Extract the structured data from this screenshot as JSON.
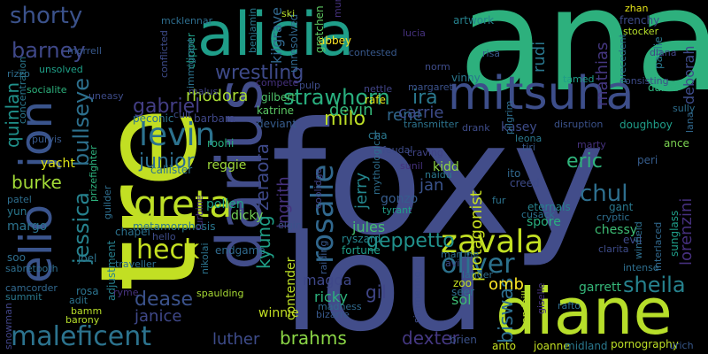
{
  "words": [
    {
      "text": "foxy",
      "color": "#424d8a"
    },
    {
      "text": "ana",
      "color": "#2db07d"
    },
    {
      "text": "tre",
      "color": "#c2df23"
    },
    {
      "text": "lou",
      "color": "#424d8a"
    },
    {
      "text": "diane",
      "color": "#b7de2a"
    },
    {
      "text": "darius",
      "color": "#424d8a"
    },
    {
      "text": "elio",
      "color": "#3a548c"
    },
    {
      "text": "jon",
      "color": "#3a548c"
    },
    {
      "text": "alicia",
      "color": "#1f9e89"
    },
    {
      "text": "mitsuha",
      "color": "#3d4e8a"
    },
    {
      "text": "zavala",
      "color": "#c2df23"
    },
    {
      "text": "rosalie",
      "color": "#31688e"
    },
    {
      "text": "greta",
      "color": "#bddf26"
    },
    {
      "text": "maleficent",
      "color": "#2c738e"
    },
    {
      "text": "heck",
      "color": "#c5e021"
    },
    {
      "text": "levin",
      "color": "#2c728e"
    },
    {
      "text": "oliver",
      "color": "#2c728e"
    },
    {
      "text": "sheila",
      "color": "#26828e"
    },
    {
      "text": "shorty",
      "color": "#3b528b"
    },
    {
      "text": "barney",
      "color": "#3f4889"
    },
    {
      "text": "strawhorn",
      "color": "#29af7f"
    },
    {
      "text": "wrestling",
      "color": "#3e4a89"
    },
    {
      "text": "gabriel",
      "color": "#433e85"
    },
    {
      "text": "bullseye",
      "color": "#2d708e"
    },
    {
      "text": "quinlan",
      "color": "#20928c"
    },
    {
      "text": "junior",
      "color": "#2e6e8e"
    },
    {
      "text": "eric",
      "color": "#2fb47c"
    },
    {
      "text": "jessica",
      "color": "#26828e"
    },
    {
      "text": "geppetto",
      "color": "#21918c"
    },
    {
      "text": "kyung",
      "color": "#1fa088"
    },
    {
      "text": "zeraora",
      "color": "#3e4989"
    },
    {
      "text": "ingrith",
      "color": "#46327e"
    },
    {
      "text": "jerry",
      "color": "#24878e"
    },
    {
      "text": "protagonist",
      "color": "#c8e020"
    },
    {
      "text": "chul",
      "color": "#2e6f8e"
    },
    {
      "text": "lorenzini",
      "color": "#46307e"
    },
    {
      "text": "deborah",
      "color": "#3e4c8a"
    },
    {
      "text": "mathias",
      "color": "#453781"
    },
    {
      "text": "rudi",
      "color": "#2a778e"
    },
    {
      "text": "brahms",
      "color": "#8bd646"
    },
    {
      "text": "dexter",
      "color": "#453882"
    },
    {
      "text": "gil",
      "color": "#404688"
    },
    {
      "text": "biswas",
      "color": "#2e6e8e"
    },
    {
      "text": "burke",
      "color": "#a2da37"
    },
    {
      "text": "milo",
      "color": "#bddf26"
    },
    {
      "text": "ira",
      "color": "#2a788e"
    },
    {
      "text": "rene",
      "color": "#31688e"
    },
    {
      "text": "dease",
      "color": "#3b528b"
    },
    {
      "text": "janice",
      "color": "#3f4889"
    },
    {
      "text": "carrie",
      "color": "#3e4c8a"
    },
    {
      "text": "devin",
      "color": "#35b779"
    },
    {
      "text": "rhodora",
      "color": "#a8db34"
    },
    {
      "text": "kilgrave",
      "color": "#31688e"
    },
    {
      "text": "jan",
      "color": "#3a538b"
    },
    {
      "text": "jules",
      "color": "#44bf70"
    },
    {
      "text": "omb",
      "color": "#fde725"
    },
    {
      "text": "luther",
      "color": "#3e4c8a"
    },
    {
      "text": "contender",
      "color": "#bddf26"
    },
    {
      "text": "magda",
      "color": "#3f4889"
    },
    {
      "text": "ricky",
      "color": "#2db27d"
    },
    {
      "text": "sol",
      "color": "#3dbc74"
    },
    {
      "text": "margo",
      "color": "#2c738e"
    },
    {
      "text": "yacht",
      "color": "#dde318"
    },
    {
      "text": "kasey",
      "color": "#3e4c8a"
    },
    {
      "text": "spore",
      "color": "#29af7f"
    },
    {
      "text": "garrett",
      "color": "#35b779"
    },
    {
      "text": "winnie",
      "color": "#c2df23"
    },
    {
      "text": "gonzo",
      "color": "#365c8d"
    },
    {
      "text": "kidd",
      "color": "#8fd744"
    },
    {
      "text": "pollen",
      "color": "#20a386"
    },
    {
      "text": "dicky",
      "color": "#73d056"
    },
    {
      "text": "reggie",
      "color": "#9dd93b"
    },
    {
      "text": "callister",
      "color": "#2c738e"
    },
    {
      "text": "metamorphosis",
      "color": "#2a768e"
    },
    {
      "text": "chapel",
      "color": "#2c728e"
    },
    {
      "text": "endgame",
      "color": "#306a8e"
    },
    {
      "text": "adjustment",
      "color": "#27808e"
    },
    {
      "text": "chessy",
      "color": "#3dbc74"
    },
    {
      "text": "ryszard",
      "color": "#24868e"
    },
    {
      "text": "fortune",
      "color": "#1f9e89"
    },
    {
      "text": "vinny",
      "color": "#2a788e"
    },
    {
      "text": "rafe",
      "color": "#e2e418"
    },
    {
      "text": "katrine",
      "color": "#5ac864"
    },
    {
      "text": "deviant",
      "color": "#365c8d"
    },
    {
      "text": "gilbert",
      "color": "#4ec36b"
    },
    {
      "text": "cha",
      "color": "#2a788e"
    },
    {
      "text": "barbara",
      "color": "#3f4788"
    },
    {
      "text": "roohi",
      "color": "#29af7f"
    },
    {
      "text": "peconic",
      "color": "#2c738e"
    },
    {
      "text": "artwork",
      "color": "#26828e"
    },
    {
      "text": "frenchy",
      "color": "#3e4c8a"
    },
    {
      "text": "paulie",
      "color": "#2a788e"
    },
    {
      "text": "dared",
      "color": "#2db27d"
    },
    {
      "text": "peri",
      "color": "#365d8d"
    },
    {
      "text": "ance",
      "color": "#7ad151"
    },
    {
      "text": "doughboy",
      "color": "#1f9e89"
    },
    {
      "text": "creed",
      "color": "#3e4c8a"
    },
    {
      "text": "ito",
      "color": "#31688e"
    },
    {
      "text": "eternals",
      "color": "#26828e"
    },
    {
      "text": "abbey",
      "color": "#fde725"
    },
    {
      "text": "clipper",
      "color": "#1fa088"
    },
    {
      "text": "gretchen",
      "color": "#5ec962"
    },
    {
      "text": "unresolved",
      "color": "#31688e"
    },
    {
      "text": "sunglass",
      "color": "#1f9e89"
    },
    {
      "text": "evil",
      "color": "#3e4989"
    },
    {
      "text": "gant",
      "color": "#2a788e"
    },
    {
      "text": "seer",
      "color": "#2e6e8e"
    },
    {
      "text": "anto",
      "color": "#c5e021"
    },
    {
      "text": "joanne",
      "color": "#c2df23"
    },
    {
      "text": "midland",
      "color": "#2a788e"
    },
    {
      "text": "pornography",
      "color": "#bddf26"
    },
    {
      "text": "brien",
      "color": "#3b528b"
    },
    {
      "text": "zoo",
      "color": "#c5e021"
    },
    {
      "text": "bizarre",
      "color": "#38598c"
    },
    {
      "text": "madness",
      "color": "#306a8e"
    },
    {
      "text": "spaulding",
      "color": "#a8db34"
    },
    {
      "text": "bamm",
      "color": "#b8de29"
    },
    {
      "text": "rosa",
      "color": "#2c738e"
    },
    {
      "text": "joel",
      "color": "#2c738e"
    },
    {
      "text": "soo",
      "color": "#2e6e8e"
    },
    {
      "text": "yun",
      "color": "#2a788e"
    },
    {
      "text": "patel",
      "color": "#2e6e8e"
    },
    {
      "text": "snowman",
      "color": "#414487"
    },
    {
      "text": "handbill",
      "color": "#b5de2b"
    },
    {
      "text": "simmering",
      "color": "#3e4c8a"
    },
    {
      "text": "giselle",
      "color": "#46327e"
    },
    {
      "text": "mcklennar",
      "color": "#2e6e8e"
    },
    {
      "text": "benjamin",
      "color": "#2a788e"
    },
    {
      "text": "rizzo",
      "color": "#2e6e8e"
    },
    {
      "text": "unsolved",
      "color": "#1fa088"
    },
    {
      "text": "socialite",
      "color": "#2db27d"
    },
    {
      "text": "purvis",
      "color": "#38598c"
    },
    {
      "text": "uneasy",
      "color": "#3e4c8a"
    },
    {
      "text": "malus",
      "color": "#414487"
    },
    {
      "text": "compete",
      "color": "#46327e"
    },
    {
      "text": "pulp",
      "color": "#3e4c8a"
    },
    {
      "text": "nettle",
      "color": "#414487"
    },
    {
      "text": "margaret",
      "color": "#3b528b"
    },
    {
      "text": "transmitter",
      "color": "#2c738e"
    },
    {
      "text": "drank",
      "color": "#3e4c8a"
    },
    {
      "text": "pilgrim",
      "color": "#2e6e8e"
    },
    {
      "text": "leona",
      "color": "#2a788e"
    },
    {
      "text": "tiri",
      "color": "#38598c"
    },
    {
      "text": "marty",
      "color": "#46327e"
    },
    {
      "text": "lana",
      "color": "#31688e"
    },
    {
      "text": "sully",
      "color": "#2e6e8e"
    },
    {
      "text": "consisting",
      "color": "#3e4c8a"
    },
    {
      "text": "tamed",
      "color": "#1f9e89"
    },
    {
      "text": "diana",
      "color": "#414487"
    },
    {
      "text": "stocker",
      "color": "#b5de2b"
    },
    {
      "text": "zhan",
      "color": "#e5e419"
    },
    {
      "text": "precedent",
      "color": "#2e6e8e"
    },
    {
      "text": "risa",
      "color": "#38598c"
    },
    {
      "text": "lucia",
      "color": "#46327e"
    },
    {
      "text": "norm",
      "color": "#3e4c8a"
    },
    {
      "text": "ski",
      "color": "#b5de2b"
    },
    {
      "text": "immigrant",
      "color": "#2c738e"
    },
    {
      "text": "concentration",
      "color": "#2a788e"
    },
    {
      "text": "prizefighter",
      "color": "#2db27d"
    },
    {
      "text": "guilder",
      "color": "#2e6e8e"
    },
    {
      "text": "turbine",
      "color": "#46327e"
    },
    {
      "text": "nikolai",
      "color": "#2c738e"
    },
    {
      "text": "traveller",
      "color": "#2e6e8e"
    },
    {
      "text": "ryme",
      "color": "#46327e"
    },
    {
      "text": "sabretooth",
      "color": "#2e6e8e"
    },
    {
      "text": "summit",
      "color": "#2a788e"
    },
    {
      "text": "adit",
      "color": "#2c738e"
    },
    {
      "text": "barony",
      "color": "#b5de2b"
    },
    {
      "text": "elgin",
      "color": "#3b528b"
    },
    {
      "text": "raiding",
      "color": "#38598c"
    },
    {
      "text": "martine",
      "color": "#2e6e8e"
    },
    {
      "text": "avi",
      "color": "#3e4c8a"
    },
    {
      "text": "lander",
      "color": "#2e6e8e"
    },
    {
      "text": "tyrant",
      "color": "#1f9e89"
    },
    {
      "text": "fur",
      "color": "#2c738e"
    },
    {
      "text": "cusack",
      "color": "#2c738e"
    },
    {
      "text": "cryptic",
      "color": "#2e6e8e"
    },
    {
      "text": "clarita",
      "color": "#3e4c8a"
    },
    {
      "text": "intense",
      "color": "#2e6e8e"
    },
    {
      "text": "interlaced",
      "color": "#31688e"
    },
    {
      "text": "winfield",
      "color": "#2e6e8e"
    },
    {
      "text": "urich",
      "color": "#38598c"
    },
    {
      "text": "craving",
      "color": "#414487"
    },
    {
      "text": "disruption",
      "color": "#3b528b"
    },
    {
      "text": "naidu",
      "color": "#2a788e"
    },
    {
      "text": "sunil",
      "color": "#46327e"
    },
    {
      "text": "feudal",
      "color": "#3e4c8a"
    },
    {
      "text": "mythological",
      "color": "#2e6e8e"
    },
    {
      "text": "coolidge",
      "color": "#414487"
    },
    {
      "text": "rafto",
      "color": "#2e6e8e"
    },
    {
      "text": "camcorder",
      "color": "#31688e"
    },
    {
      "text": "morrell",
      "color": "#38598c"
    },
    {
      "text": "hello",
      "color": "#3e4c8a"
    },
    {
      "text": "muratur",
      "color": "#46327e"
    },
    {
      "text": "conflicted",
      "color": "#3e4c8a"
    },
    {
      "text": "contested",
      "color": "#38598c"
    },
    {
      "text": "cult",
      "color": "#3e4c8a"
    }
  ]
}
